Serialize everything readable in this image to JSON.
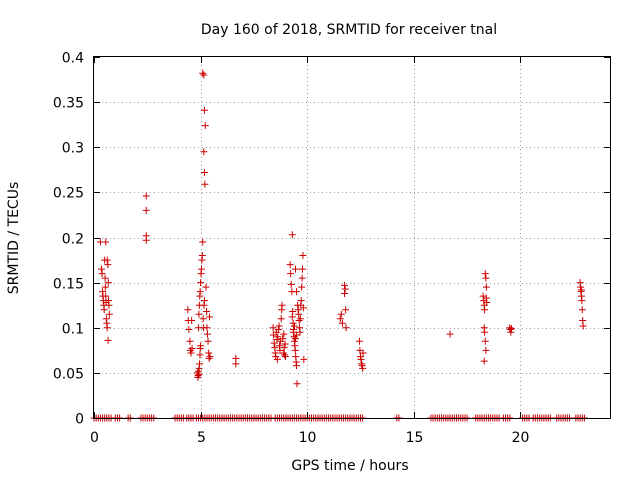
{
  "chart_data": {
    "type": "scatter",
    "title": "Day 160 of 2018, SRMTID for receiver tnal",
    "xlabel": "GPS time / hours",
    "ylabel": "SRMTID / TECUs",
    "xlim": [
      0,
      24.2
    ],
    "ylim": [
      0,
      0.4
    ],
    "x_ticks": [
      0,
      5,
      10,
      15,
      20
    ],
    "x_tick_labels": [
      "0",
      "5",
      "10",
      "15",
      "20"
    ],
    "y_ticks": [
      0,
      0.05,
      0.1,
      0.15,
      0.2,
      0.25,
      0.3,
      0.35,
      0.4
    ],
    "y_tick_labels": [
      "0",
      "0.05",
      "0.1",
      "0.15",
      "0.2",
      "0.25",
      "0.3",
      "0.35",
      "0.4"
    ],
    "grid": true,
    "legend": "none",
    "marker": "plus",
    "marker_color": "#cc0000",
    "series": [
      {
        "name": "SRMTID",
        "points": [
          [
            0.3,
            0.195
          ],
          [
            0.35,
            0.165
          ],
          [
            0.38,
            0.16
          ],
          [
            0.4,
            0.14
          ],
          [
            0.42,
            0.135
          ],
          [
            0.44,
            0.13
          ],
          [
            0.46,
            0.125
          ],
          [
            0.48,
            0.12
          ],
          [
            0.5,
            0.175
          ],
          [
            0.52,
            0.155
          ],
          [
            0.53,
            0.145
          ],
          [
            0.55,
            0.135
          ],
          [
            0.57,
            0.128
          ],
          [
            0.58,
            0.11
          ],
          [
            0.6,
            0.105
          ],
          [
            0.62,
            0.1
          ],
          [
            0.55,
            0.195
          ],
          [
            0.65,
            0.17
          ],
          [
            0.67,
            0.15
          ],
          [
            0.68,
            0.13
          ],
          [
            0.7,
            0.125
          ],
          [
            0.72,
            0.115
          ],
          [
            0.62,
            0.175
          ],
          [
            0.66,
            0.086
          ],
          [
            2.45,
            0.246
          ],
          [
            2.45,
            0.23
          ],
          [
            2.45,
            0.202
          ],
          [
            2.45,
            0.197
          ],
          [
            4.4,
            0.12
          ],
          [
            4.42,
            0.108
          ],
          [
            4.45,
            0.098
          ],
          [
            4.5,
            0.085
          ],
          [
            4.52,
            0.075
          ],
          [
            4.55,
            0.072
          ],
          [
            4.58,
            0.108
          ],
          [
            4.6,
            0.077
          ],
          [
            4.85,
            0.05
          ],
          [
            4.87,
            0.045
          ],
          [
            4.88,
            0.047
          ],
          [
            4.9,
            0.052
          ],
          [
            4.92,
            0.048
          ],
          [
            4.93,
            0.055
          ],
          [
            4.95,
            0.06
          ],
          [
            4.97,
            0.07
          ],
          [
            4.98,
            0.077
          ],
          [
            5.0,
            0.08
          ],
          [
            4.9,
            0.1
          ],
          [
            4.92,
            0.115
          ],
          [
            4.94,
            0.125
          ],
          [
            4.96,
            0.135
          ],
          [
            4.98,
            0.14
          ],
          [
            5.0,
            0.15
          ],
          [
            5.02,
            0.16
          ],
          [
            5.04,
            0.165
          ],
          [
            5.06,
            0.175
          ],
          [
            5.08,
            0.18
          ],
          [
            5.1,
            0.195
          ],
          [
            5.12,
            0.11
          ],
          [
            5.14,
            0.1
          ],
          [
            5.16,
            0.125
          ],
          [
            5.18,
            0.13
          ],
          [
            5.1,
            0.382
          ],
          [
            5.15,
            0.38
          ],
          [
            5.18,
            0.341
          ],
          [
            5.22,
            0.324
          ],
          [
            5.15,
            0.295
          ],
          [
            5.18,
            0.272
          ],
          [
            5.2,
            0.259
          ],
          [
            5.25,
            0.145
          ],
          [
            5.28,
            0.118
          ],
          [
            5.3,
            0.1
          ],
          [
            5.32,
            0.093
          ],
          [
            5.35,
            0.085
          ],
          [
            5.38,
            0.072
          ],
          [
            5.4,
            0.066
          ],
          [
            5.42,
            0.112
          ],
          [
            5.44,
            0.068
          ],
          [
            6.65,
            0.066
          ],
          [
            6.65,
            0.06
          ],
          [
            8.4,
            0.1
          ],
          [
            8.42,
            0.092
          ],
          [
            8.45,
            0.083
          ],
          [
            8.48,
            0.078
          ],
          [
            8.5,
            0.072
          ],
          [
            8.52,
            0.068
          ],
          [
            8.55,
            0.095
          ],
          [
            8.58,
            0.087
          ],
          [
            8.6,
            0.065
          ],
          [
            8.62,
            0.09
          ],
          [
            8.65,
            0.098
          ],
          [
            8.68,
            0.102
          ],
          [
            8.7,
            0.08
          ],
          [
            8.72,
            0.075
          ],
          [
            8.75,
            0.085
          ],
          [
            8.78,
            0.11
          ],
          [
            8.8,
            0.12
          ],
          [
            8.82,
            0.125
          ],
          [
            8.85,
            0.088
          ],
          [
            8.88,
            0.072
          ],
          [
            8.9,
            0.093
          ],
          [
            8.92,
            0.078
          ],
          [
            8.94,
            0.07
          ],
          [
            8.96,
            0.082
          ],
          [
            8.98,
            0.068
          ],
          [
            9.2,
            0.17
          ],
          [
            9.22,
            0.16
          ],
          [
            9.25,
            0.148
          ],
          [
            9.28,
            0.14
          ],
          [
            9.3,
            0.203
          ],
          [
            9.32,
            0.118
          ],
          [
            9.34,
            0.105
          ],
          [
            9.36,
            0.098
          ],
          [
            9.38,
            0.09
          ],
          [
            9.4,
            0.085
          ],
          [
            9.42,
            0.08
          ],
          [
            9.44,
            0.075
          ],
          [
            9.46,
            0.068
          ],
          [
            9.48,
            0.062
          ],
          [
            9.5,
            0.058
          ],
          [
            9.52,
            0.038
          ],
          [
            9.3,
            0.112
          ],
          [
            9.35,
            0.095
          ],
          [
            9.4,
            0.102
          ],
          [
            9.45,
            0.088
          ],
          [
            9.5,
            0.092
          ],
          [
            9.55,
            0.125
          ],
          [
            9.58,
            0.12
          ],
          [
            9.6,
            0.115
          ],
          [
            9.62,
            0.108
          ],
          [
            9.64,
            0.1
          ],
          [
            9.66,
            0.095
          ],
          [
            9.68,
            0.11
          ],
          [
            9.7,
            0.125
          ],
          [
            9.72,
            0.13
          ],
          [
            9.74,
            0.145
          ],
          [
            9.76,
            0.155
          ],
          [
            9.78,
            0.165
          ],
          [
            9.8,
            0.18
          ],
          [
            9.82,
            0.122
          ],
          [
            9.84,
            0.065
          ],
          [
            9.5,
            0.14
          ],
          [
            9.45,
            0.165
          ],
          [
            11.55,
            0.11
          ],
          [
            11.6,
            0.115
          ],
          [
            11.65,
            0.105
          ],
          [
            11.75,
            0.147
          ],
          [
            11.78,
            0.143
          ],
          [
            11.8,
            0.12
          ],
          [
            11.82,
            0.1
          ],
          [
            11.75,
            0.138
          ],
          [
            12.45,
            0.085
          ],
          [
            12.47,
            0.075
          ],
          [
            12.5,
            0.068
          ],
          [
            12.52,
            0.065
          ],
          [
            12.55,
            0.06
          ],
          [
            12.58,
            0.058
          ],
          [
            12.6,
            0.055
          ],
          [
            12.62,
            0.072
          ],
          [
            16.7,
            0.093
          ],
          [
            18.25,
            0.135
          ],
          [
            18.28,
            0.13
          ],
          [
            18.3,
            0.125
          ],
          [
            18.32,
            0.12
          ],
          [
            18.35,
            0.16
          ],
          [
            18.38,
            0.155
          ],
          [
            18.4,
            0.145
          ],
          [
            18.42,
            0.128
          ],
          [
            18.3,
            0.1
          ],
          [
            18.32,
            0.095
          ],
          [
            18.35,
            0.085
          ],
          [
            18.38,
            0.075
          ],
          [
            18.3,
            0.063
          ],
          [
            18.4,
            0.133
          ],
          [
            19.5,
            0.1
          ],
          [
            19.52,
            0.098
          ],
          [
            19.55,
            0.095
          ],
          [
            19.58,
            0.099
          ],
          [
            22.8,
            0.15
          ],
          [
            22.82,
            0.145
          ],
          [
            22.84,
            0.14
          ],
          [
            22.86,
            0.135
          ],
          [
            22.88,
            0.13
          ],
          [
            22.9,
            0.12
          ],
          [
            22.92,
            0.108
          ],
          [
            22.94,
            0.102
          ],
          [
            22.86,
            0.142
          ]
        ]
      }
    ],
    "zero_intervals": [
      [
        0.0,
        0.8
      ],
      [
        1.0,
        1.2
      ],
      [
        1.6,
        1.7
      ],
      [
        2.2,
        2.5
      ],
      [
        2.6,
        2.8
      ],
      [
        3.8,
        4.2
      ],
      [
        4.35,
        4.7
      ],
      [
        4.8,
        8.3
      ],
      [
        8.5,
        10.8
      ],
      [
        10.9,
        11.7
      ],
      [
        11.8,
        12.2
      ],
      [
        12.3,
        12.6
      ],
      [
        14.2,
        14.3
      ],
      [
        15.8,
        17.5
      ],
      [
        17.9,
        18.5
      ],
      [
        18.6,
        19.0
      ],
      [
        19.2,
        19.5
      ],
      [
        20.1,
        20.4
      ],
      [
        20.6,
        21.4
      ],
      [
        21.7,
        22.3
      ],
      [
        22.6,
        23.0
      ]
    ],
    "zero_step_hours": 0.1
  }
}
